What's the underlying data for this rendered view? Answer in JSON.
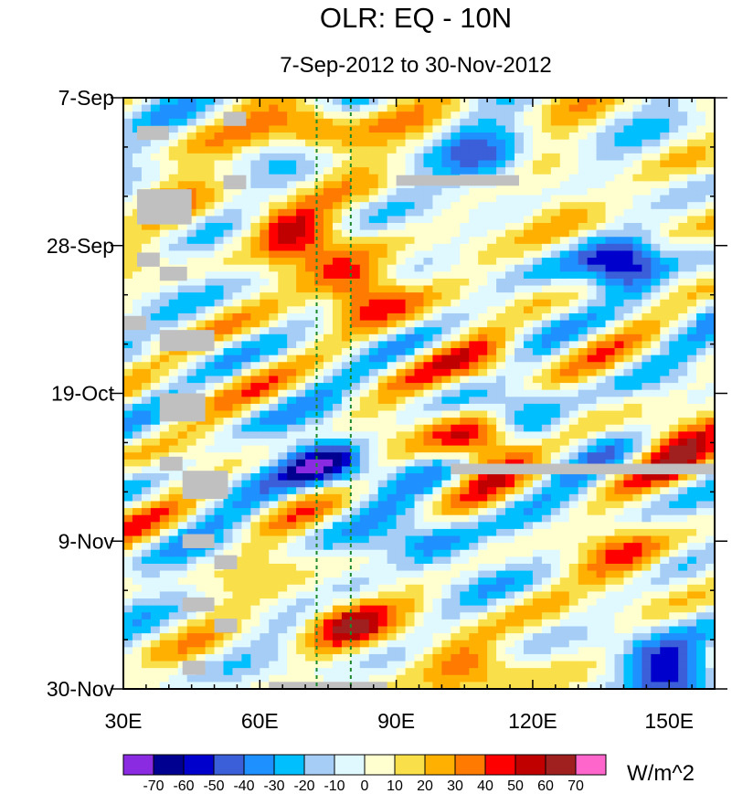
{
  "chart_data": {
    "type": "heatmap",
    "title": "OLR: EQ - 10N",
    "subtitle": "7-Sep-2012 to 30-Nov-2012",
    "x_ticks": [
      {
        "value": 30,
        "label": "30E"
      },
      {
        "value": 60,
        "label": "60E"
      },
      {
        "value": 90,
        "label": "90E"
      },
      {
        "value": 120,
        "label": "120E"
      },
      {
        "value": 150,
        "label": "150E"
      }
    ],
    "xlim": [
      30,
      160
    ],
    "ylim_days": [
      0,
      84
    ],
    "y_ticks": [
      {
        "day": 0,
        "label": "7-Sep"
      },
      {
        "day": 21,
        "label": "28-Sep"
      },
      {
        "day": 42,
        "label": "19-Oct"
      },
      {
        "day": 63,
        "label": "9-Nov"
      },
      {
        "day": 84,
        "label": "30-Nov"
      }
    ],
    "reference_lines_lon": [
      72.5,
      80
    ],
    "levels": [
      -70,
      -60,
      -50,
      -40,
      -30,
      -20,
      -10,
      0,
      10,
      20,
      30,
      40,
      50,
      60,
      70
    ],
    "colors": [
      "#8a2be2",
      "#000090",
      "#0000cd",
      "#3a5fd8",
      "#1e90ff",
      "#00bfff",
      "#a6cdf5",
      "#e0f8ff",
      "#ffffd0",
      "#f9e04a",
      "#ffb000",
      "#ff7a00",
      "#ff0000",
      "#c00000",
      "#a02020",
      "#ff66cc"
    ],
    "units": "W/m^2",
    "features": [
      {
        "lon": 72,
        "day": 4,
        "value": 45
      },
      {
        "lon": 67,
        "day": 19,
        "value": 50
      },
      {
        "lon": 82,
        "day": 27,
        "value": 60
      },
      {
        "lon": 107,
        "day": 49,
        "value": 60
      },
      {
        "lon": 78,
        "day": 74,
        "value": 45
      },
      {
        "lon": 75,
        "day": 52,
        "value": -65
      },
      {
        "lon": 140,
        "day": 24,
        "value": -60
      },
      {
        "lon": 150,
        "day": 81,
        "value": -60
      },
      {
        "lon": 112,
        "day": 10,
        "value": -40
      },
      {
        "lon": 98,
        "day": 64,
        "value": -40
      },
      {
        "lon": 40,
        "day": 12,
        "value": 10
      },
      {
        "lon": 45,
        "day": 40,
        "value": 5
      },
      {
        "lon": 105,
        "day": 80,
        "value": 35
      },
      {
        "lon": 140,
        "day": 66,
        "value": 30
      },
      {
        "lon": 150,
        "day": 49,
        "value": 40
      },
      {
        "lon": 110,
        "day": 38,
        "value": 30
      },
      {
        "lon": 120,
        "day": 46,
        "value": -40
      },
      {
        "lon": 125,
        "day": 15,
        "value": 25
      }
    ],
    "missing_data": [
      {
        "lon0": 90,
        "lon1": 117,
        "day0": 11,
        "day1": 12.5
      },
      {
        "lon0": 102,
        "lon1": 160,
        "day0": 52,
        "day1": 53.5
      },
      {
        "lon0": 62,
        "lon1": 88,
        "day0": 83,
        "day1": 84
      },
      {
        "lon0": 52,
        "lon1": 57,
        "day0": 2,
        "day1": 4
      },
      {
        "lon0": 33,
        "lon1": 40,
        "day0": 4,
        "day1": 6
      },
      {
        "lon0": 52,
        "lon1": 57,
        "day0": 11,
        "day1": 13
      },
      {
        "lon0": 33,
        "lon1": 45,
        "day0": 13,
        "day1": 18
      },
      {
        "lon0": 33,
        "lon1": 38,
        "day0": 22,
        "day1": 24
      },
      {
        "lon0": 38,
        "lon1": 44,
        "day0": 24,
        "day1": 26
      },
      {
        "lon0": 30,
        "lon1": 35,
        "day0": 31,
        "day1": 33
      },
      {
        "lon0": 38,
        "lon1": 50,
        "day0": 33,
        "day1": 36
      },
      {
        "lon0": 38,
        "lon1": 48,
        "day0": 42,
        "day1": 46
      },
      {
        "lon0": 38,
        "lon1": 43,
        "day0": 51,
        "day1": 53
      },
      {
        "lon0": 43,
        "lon1": 53,
        "day0": 53,
        "day1": 57
      },
      {
        "lon0": 43,
        "lon1": 50,
        "day0": 62,
        "day1": 64
      },
      {
        "lon0": 50,
        "lon1": 55,
        "day0": 65,
        "day1": 67
      },
      {
        "lon0": 43,
        "lon1": 50,
        "day0": 71,
        "day1": 73
      },
      {
        "lon0": 50,
        "lon1": 55,
        "day0": 74,
        "day1": 76
      },
      {
        "lon0": 43,
        "lon1": 48,
        "day0": 80,
        "day1": 82
      }
    ]
  }
}
